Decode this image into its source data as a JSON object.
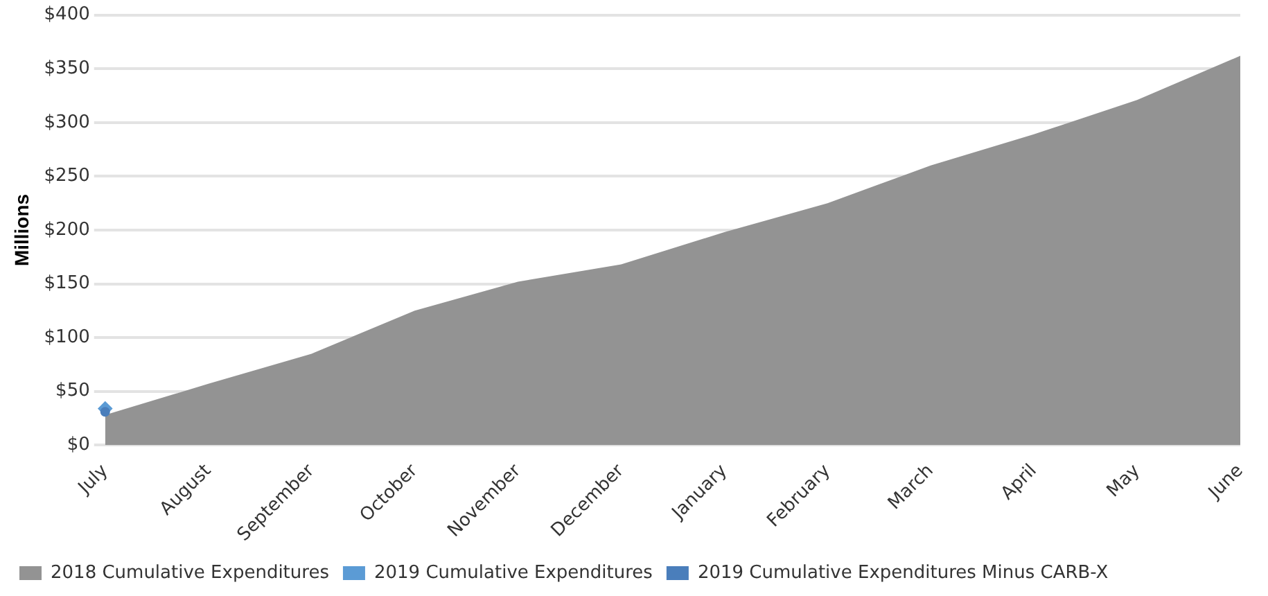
{
  "chart_data": {
    "type": "area",
    "ylabel": "Millions",
    "categories": [
      "July",
      "August",
      "September",
      "October",
      "November",
      "December",
      "January",
      "February",
      "March",
      "April",
      "May",
      "June"
    ],
    "series": [
      {
        "name": "2018 Cumulative Expenditures",
        "color": "#939393",
        "values": [
          28,
          57,
          85,
          125,
          152,
          168,
          198,
          225,
          260,
          289,
          321,
          362
        ]
      },
      {
        "name": "2019 Cumulative Expenditures",
        "type": "line",
        "color": "#5b9bd5",
        "marker": "diamond",
        "values": [
          34,
          null,
          null,
          null,
          null,
          null,
          null,
          null,
          null,
          null,
          null,
          null
        ]
      },
      {
        "name": "2019 Cumulative Expenditures Minus CARB-X",
        "type": "line",
        "color": "#4a7ebb",
        "marker": "circle",
        "values": [
          31,
          null,
          null,
          null,
          null,
          null,
          null,
          null,
          null,
          null,
          null,
          null
        ]
      }
    ],
    "ylim": [
      0,
      400
    ],
    "yticks": [
      {
        "value": 0,
        "label": "$0"
      },
      {
        "value": 50,
        "label": "$50"
      },
      {
        "value": 100,
        "label": "$100"
      },
      {
        "value": 150,
        "label": "$150"
      },
      {
        "value": 200,
        "label": "$200"
      },
      {
        "value": 250,
        "label": "$250"
      },
      {
        "value": 300,
        "label": "$300"
      },
      {
        "value": 350,
        "label": "$350"
      },
      {
        "value": 400,
        "label": "$400"
      }
    ],
    "grid": "y",
    "legend": "bottom"
  }
}
